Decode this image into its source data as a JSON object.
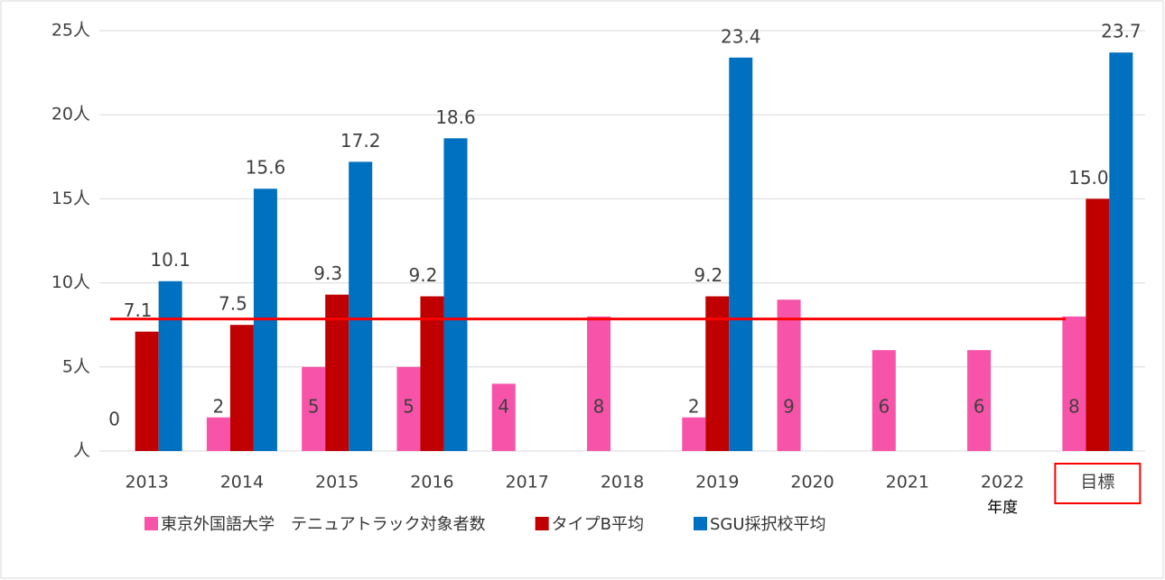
{
  "chart_data": {
    "type": "bar",
    "categories": [
      "2013",
      "2014",
      "2015",
      "2016",
      "2017",
      "2018",
      "2019",
      "2020",
      "2021",
      "2022",
      "目標"
    ],
    "x_label": "年度",
    "series": [
      {
        "name": "東京外国語大学　テニュアトラック対象者数",
        "color": "#f754a9",
        "values": [
          0,
          2,
          5,
          5,
          4,
          8,
          2,
          9,
          6,
          6,
          8
        ]
      },
      {
        "name": "タイプB平均",
        "color": "#c00000",
        "values": [
          7.1,
          7.5,
          9.3,
          9.2,
          null,
          null,
          9.2,
          null,
          null,
          null,
          15.0
        ],
        "value_labels": [
          "7.1",
          "7.5",
          "9.3",
          "9.2",
          null,
          null,
          "9.2",
          null,
          null,
          null,
          "15.0"
        ]
      },
      {
        "name": "SGU採択校平均",
        "color": "#0070c0",
        "values": [
          10.1,
          15.6,
          17.2,
          18.6,
          null,
          null,
          23.4,
          null,
          null,
          null,
          23.7
        ]
      }
    ],
    "ylim": [
      0,
      25
    ],
    "yticks": [
      {
        "value": 0,
        "label": "人"
      },
      {
        "value": 5,
        "label": "5人"
      },
      {
        "value": 10,
        "label": "10人"
      },
      {
        "value": 15,
        "label": "15人"
      },
      {
        "value": 20,
        "label": "20人"
      },
      {
        "value": 25,
        "label": "25人"
      }
    ],
    "grid": true,
    "reference_line": {
      "value": 7.85,
      "color": "#ff0000"
    },
    "legend": "bottom"
  }
}
